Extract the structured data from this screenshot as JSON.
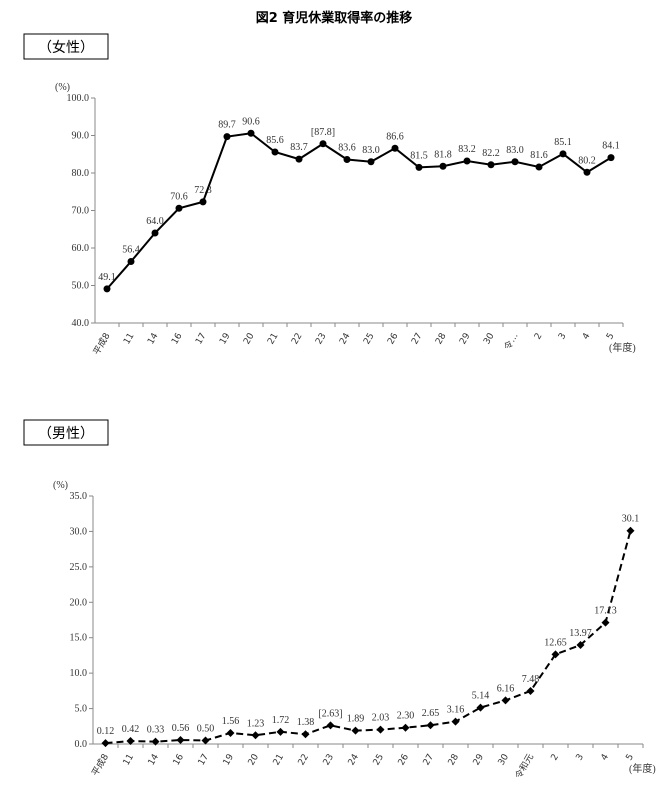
{
  "title": "図2 育児休業取得率の推移",
  "chart_data": [
    {
      "type": "line",
      "label": "（女性）",
      "y_unit": "(%)",
      "x_unit": "(年度)",
      "categories": [
        "平成8",
        "11",
        "14",
        "16",
        "17",
        "19",
        "20",
        "21",
        "22",
        "23",
        "24",
        "25",
        "26",
        "27",
        "28",
        "29",
        "30",
        "令…",
        "2",
        "3",
        "4",
        "5"
      ],
      "series": [
        {
          "color": "#000000",
          "line_style": "solid",
          "marker": "circle",
          "values": [
            49.1,
            56.4,
            64.0,
            70.6,
            72.3,
            89.7,
            90.6,
            85.6,
            83.7,
            87.8,
            83.6,
            83.0,
            86.6,
            81.5,
            81.8,
            83.2,
            82.2,
            83.0,
            81.6,
            85.1,
            80.2,
            84.1
          ],
          "value_labels": [
            "49.1",
            "56.4",
            "64.0",
            "70.6",
            "72.3",
            "89.7",
            "90.6",
            "85.6",
            "83.7",
            "[87.8]",
            "83.6",
            "83.0",
            "86.6",
            "81.5",
            "81.8",
            "83.2",
            "82.2",
            "83.0",
            "81.6",
            "85.1",
            "80.2",
            "84.1"
          ]
        }
      ],
      "ylim": [
        40,
        100
      ],
      "yticks": [
        {
          "value": 40,
          "label": "40.0"
        },
        {
          "value": 50,
          "label": "50.0"
        },
        {
          "value": 60,
          "label": "60.0"
        },
        {
          "value": 70,
          "label": "70.0"
        },
        {
          "value": 80,
          "label": "80.0"
        },
        {
          "value": 90,
          "label": "90.0"
        },
        {
          "value": 100,
          "label": "100.0"
        }
      ]
    },
    {
      "type": "line",
      "label": "（男性）",
      "y_unit": "(%)",
      "x_unit": "(年度)",
      "categories": [
        "平成8",
        "11",
        "14",
        "16",
        "17",
        "19",
        "20",
        "21",
        "22",
        "23",
        "24",
        "25",
        "26",
        "27",
        "28",
        "29",
        "30",
        "令和元",
        "2",
        "3",
        "4",
        "5"
      ],
      "series": [
        {
          "color": "#000000",
          "line_style": "dashed",
          "marker": "diamond",
          "values": [
            0.12,
            0.42,
            0.33,
            0.56,
            0.5,
            1.56,
            1.23,
            1.72,
            1.38,
            2.63,
            1.89,
            2.03,
            2.3,
            2.65,
            3.16,
            5.14,
            6.16,
            7.48,
            12.65,
            13.97,
            17.13,
            30.1
          ],
          "value_labels": [
            "0.12",
            "0.42",
            "0.33",
            "0.56",
            "0.50",
            "1.56",
            "1.23",
            "1.72",
            "1.38",
            "[2.63]",
            "1.89",
            "2.03",
            "2.30",
            "2.65",
            "3.16",
            "5.14",
            "6.16",
            "7.48",
            "12.65",
            "13.97",
            "17.13",
            "30.1"
          ]
        }
      ],
      "ylim": [
        0,
        35
      ],
      "yticks": [
        {
          "value": 0,
          "label": "0.0"
        },
        {
          "value": 5,
          "label": "5.0"
        },
        {
          "value": 10,
          "label": "10.0"
        },
        {
          "value": 15,
          "label": "15.0"
        },
        {
          "value": 20,
          "label": "20.0"
        },
        {
          "value": 25,
          "label": "25.0"
        },
        {
          "value": 30,
          "label": "30.0"
        },
        {
          "value": 35,
          "label": "35.0"
        }
      ]
    }
  ]
}
